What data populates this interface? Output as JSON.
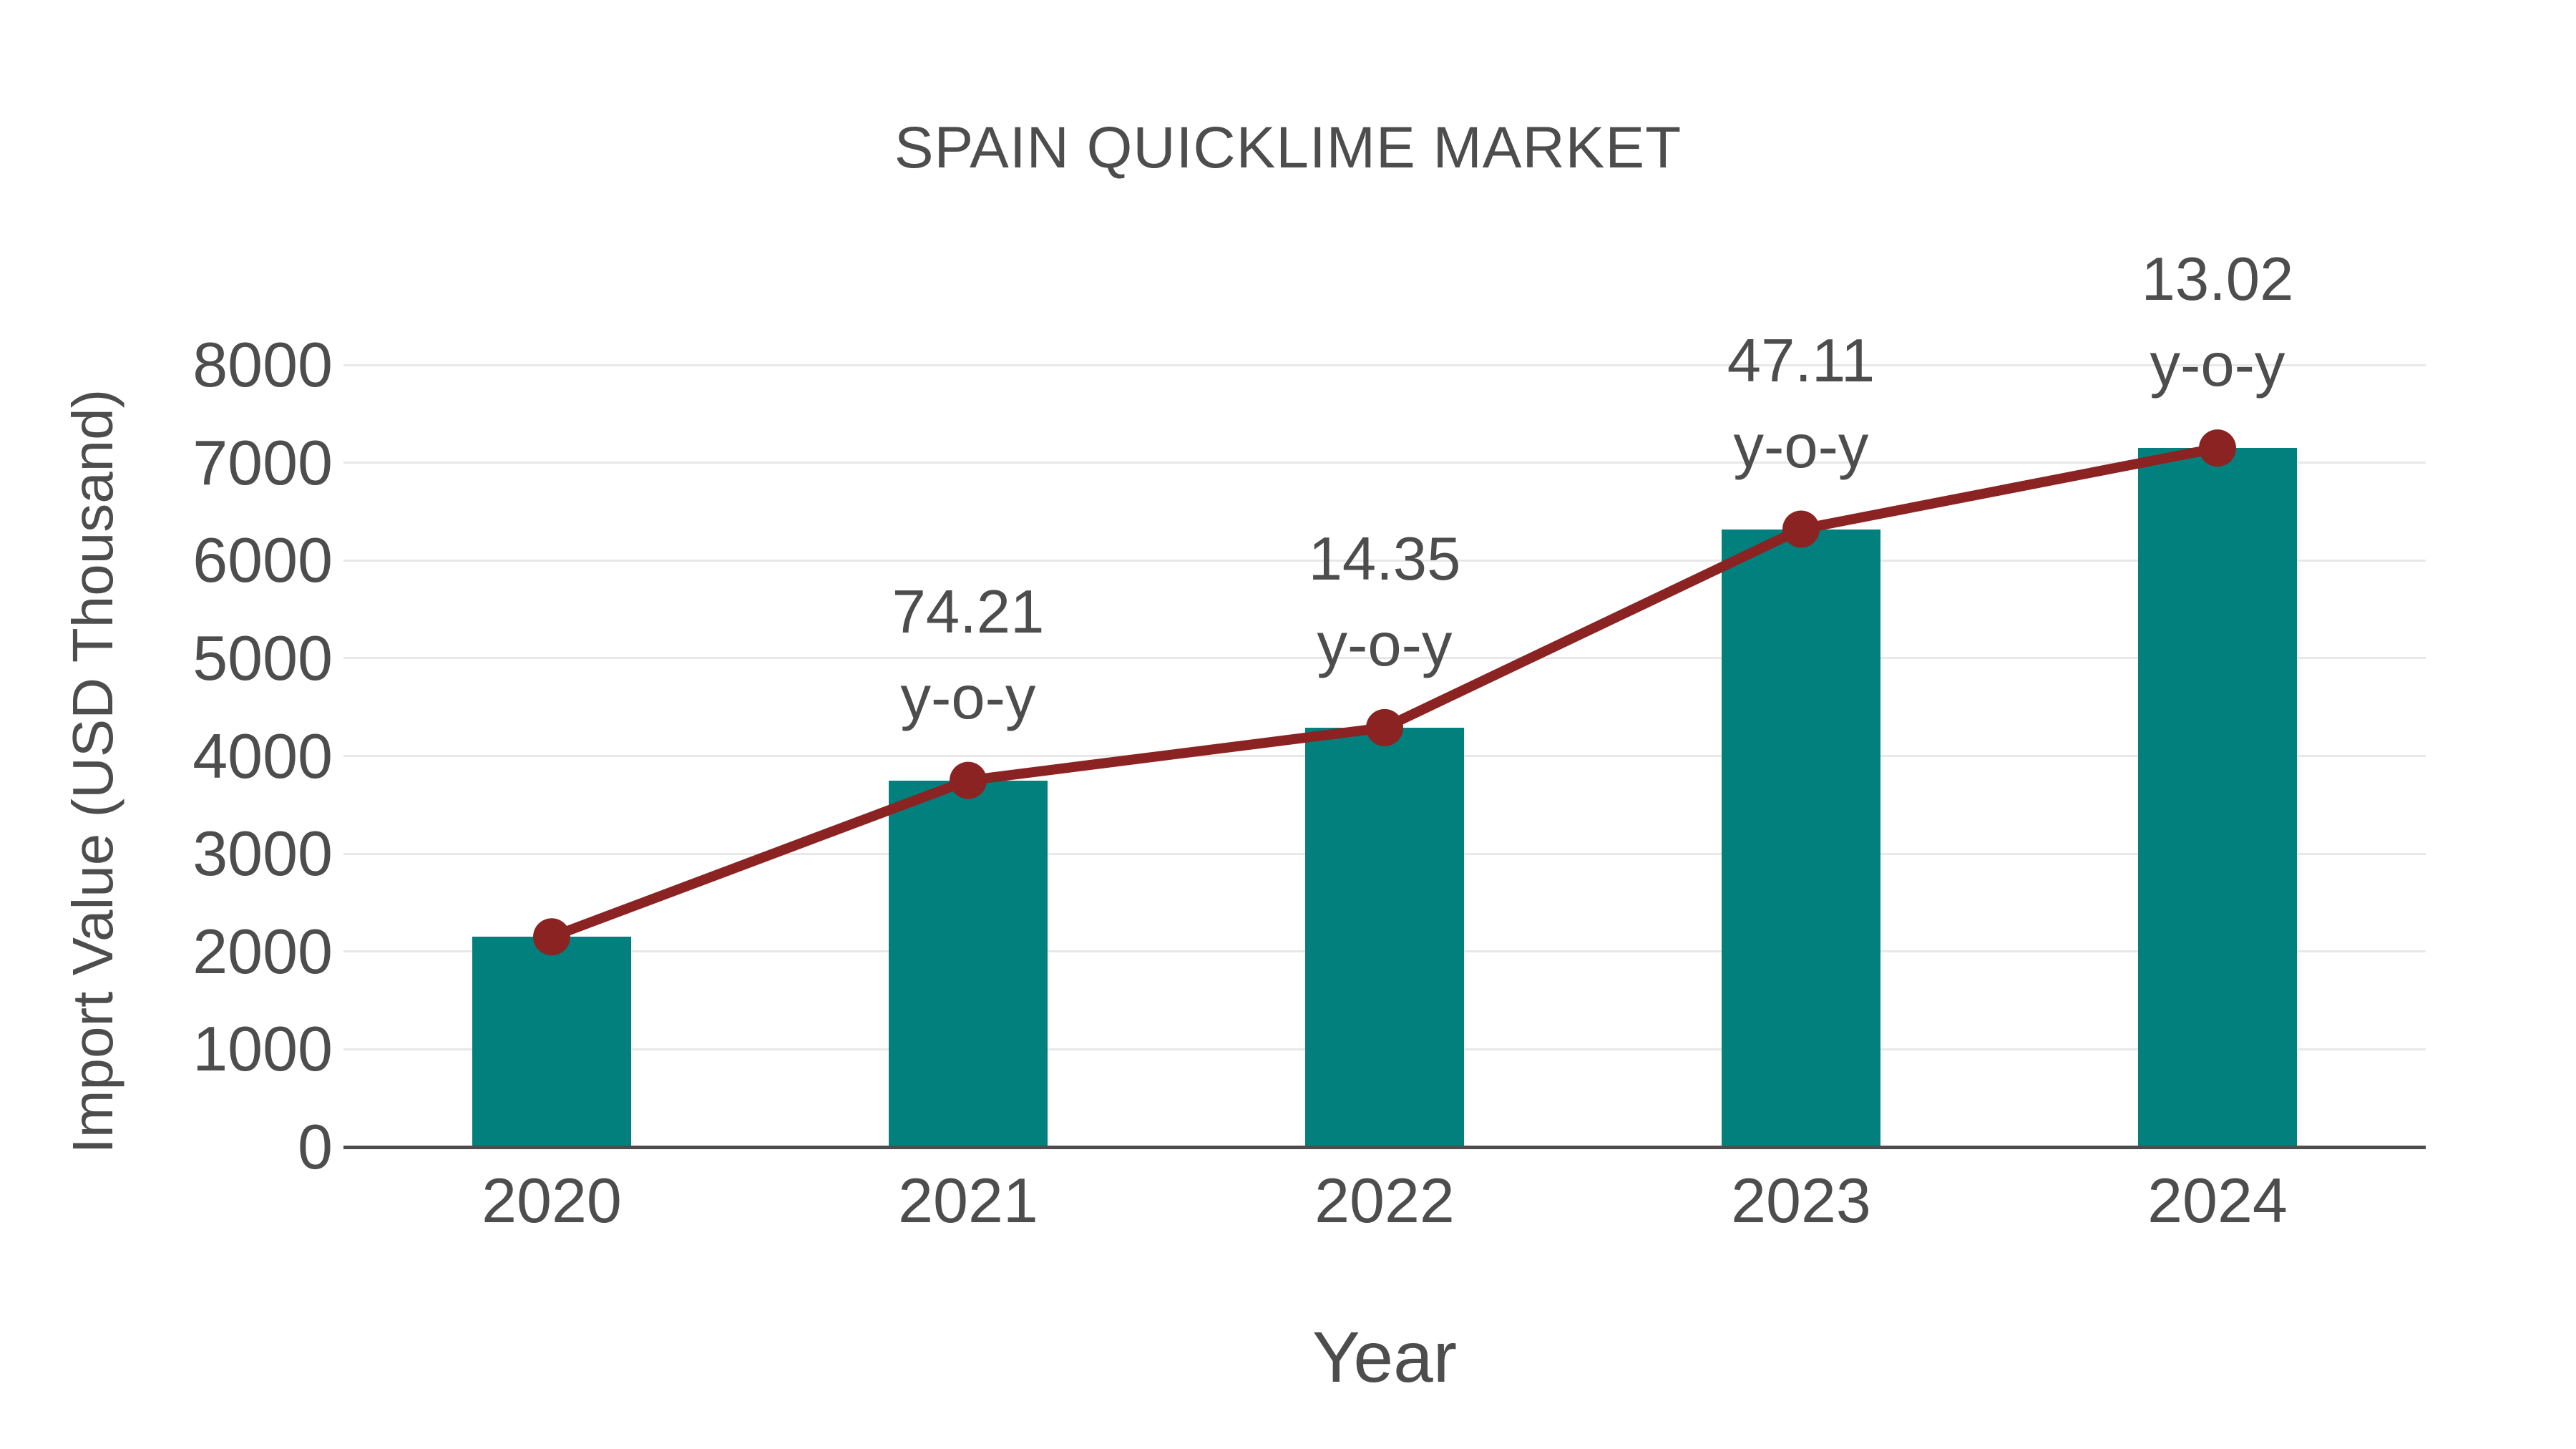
{
  "title": "SPAIN QUICKLIME MARKET",
  "colors": {
    "bar": "#01807e",
    "line": "#8b2323",
    "text": "#4d4d4d",
    "grid": "#e8e8e8",
    "axis": "#4d4d4d"
  },
  "chart_data": {
    "type": "bar",
    "title": "SPAIN QUICKLIME MARKET",
    "xlabel": "Year",
    "ylabel": "Import Value (USD Thousand)",
    "categories": [
      "2020",
      "2021",
      "2022",
      "2023",
      "2024"
    ],
    "ylim": [
      0,
      8000
    ],
    "y_ticks": [
      0,
      1000,
      2000,
      3000,
      4000,
      5000,
      6000,
      7000,
      8000
    ],
    "grid": true,
    "legend": "none",
    "series": [
      {
        "name": "Import Value (USD Thousand)",
        "type": "bar",
        "color": "#01807e",
        "values": [
          2150,
          3750,
          4290,
          6320,
          7150
        ]
      },
      {
        "name": "y-o-y growth",
        "type": "line",
        "color": "#8b2323",
        "values": [
          2150,
          3750,
          4290,
          6320,
          7150
        ],
        "point_labels": [
          null,
          "74.21",
          "14.35",
          "47.11",
          "13.02"
        ],
        "point_label_suffix": "y-o-y"
      }
    ]
  }
}
